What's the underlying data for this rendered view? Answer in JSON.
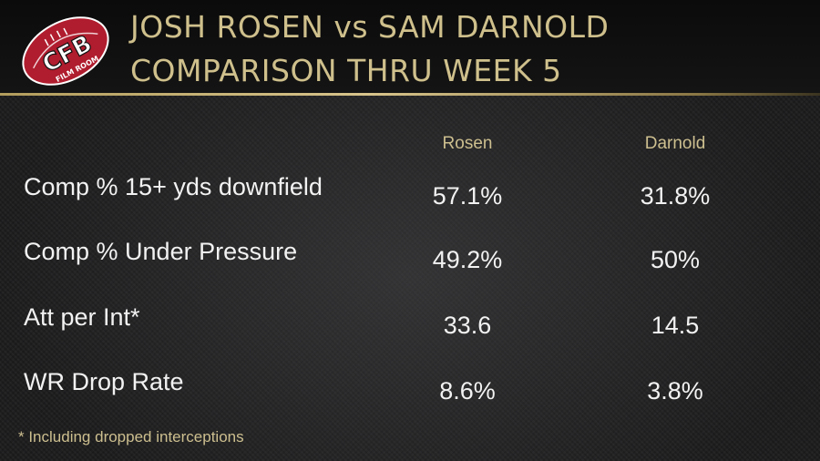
{
  "logo": {
    "big_text": "CFB",
    "small_text": "FILM ROOM"
  },
  "title": {
    "line1": "JOSH ROSEN vs SAM DARNOLD",
    "line2": "COMPARISON THRU WEEK 5"
  },
  "columns": [
    "Rosen",
    "Darnold"
  ],
  "rows": [
    {
      "label": "Comp % 15+ yds downfield",
      "rosen": "57.1%",
      "darnold": "31.8%"
    },
    {
      "label": "Comp % Under Pressure",
      "rosen": "49.2%",
      "darnold": "50%"
    },
    {
      "label": "Att per Int*",
      "rosen": "33.6",
      "darnold": "14.5"
    },
    {
      "label": "WR Drop Rate",
      "rosen": "8.6%",
      "darnold": "3.8%"
    }
  ],
  "footnote": "* Including dropped interceptions",
  "colors": {
    "gold": "#cfc08c",
    "logo_red": "#b01d2e",
    "text": "#f2f2f2"
  }
}
